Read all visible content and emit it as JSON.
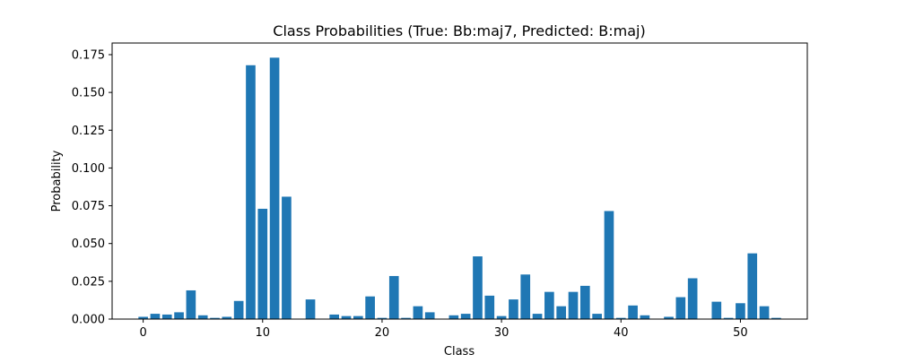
{
  "chart_data": {
    "type": "bar",
    "title": "Class Probabilities (True: Bb:maj7, Predicted: B:maj)",
    "xlabel": "Class",
    "ylabel": "Probability",
    "x": [
      0,
      1,
      2,
      3,
      4,
      5,
      6,
      7,
      8,
      9,
      10,
      11,
      12,
      13,
      14,
      15,
      16,
      17,
      18,
      19,
      20,
      21,
      22,
      23,
      24,
      25,
      26,
      27,
      28,
      29,
      30,
      31,
      32,
      33,
      34,
      35,
      36,
      37,
      38,
      39,
      40,
      41,
      42,
      43,
      44,
      45,
      46,
      47,
      48,
      49,
      50,
      51,
      52,
      53
    ],
    "values": [
      0.0015,
      0.0035,
      0.003,
      0.0045,
      0.019,
      0.0025,
      0.0008,
      0.0015,
      0.012,
      0.168,
      0.073,
      0.173,
      0.081,
      0.0,
      0.013,
      0.0,
      0.003,
      0.002,
      0.002,
      0.015,
      0.0008,
      0.0285,
      0.0008,
      0.0085,
      0.0045,
      0.0,
      0.0025,
      0.0035,
      0.0415,
      0.0155,
      0.002,
      0.013,
      0.0295,
      0.0035,
      0.018,
      0.0085,
      0.018,
      0.022,
      0.0035,
      0.0715,
      0.0008,
      0.009,
      0.0025,
      0.0,
      0.0015,
      0.0145,
      0.027,
      0.0,
      0.0115,
      0.0008,
      0.0105,
      0.0435,
      0.0085,
      0.0008
    ],
    "xlim": [
      -2.6,
      55.6
    ],
    "ylim": [
      0,
      0.1827
    ],
    "xticks": [
      0,
      10,
      20,
      30,
      40,
      50
    ],
    "xtick_labels": [
      "0",
      "10",
      "20",
      "30",
      "40",
      "50"
    ],
    "yticks": [
      0,
      0.025,
      0.05,
      0.075,
      0.1,
      0.125,
      0.15,
      0.175
    ],
    "ytick_labels": [
      "0.000",
      "0.025",
      "0.050",
      "0.075",
      "0.100",
      "0.125",
      "0.150",
      "0.175"
    ],
    "bar_color": "#1f77b4",
    "grid": false,
    "legend": "none"
  }
}
